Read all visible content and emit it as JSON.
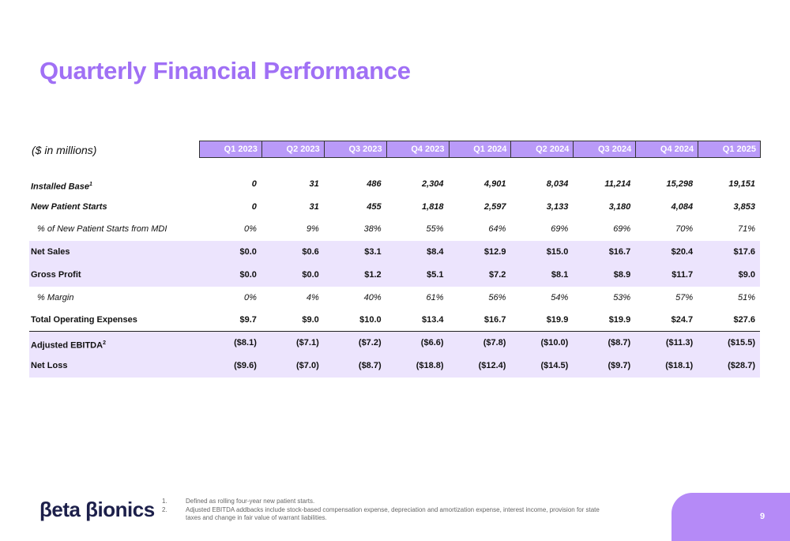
{
  "header": {
    "title": "Quarterly Financial Performance"
  },
  "table": {
    "units": "($ in millions)",
    "columns": [
      "Q1 2023",
      "Q2 2023",
      "Q3 2023",
      "Q4 2023",
      "Q1 2024",
      "Q2 2024",
      "Q3 2024",
      "Q4 2024",
      "Q1 2025"
    ],
    "rows": [
      {
        "label": "Installed Base",
        "sup": "1",
        "values": [
          "0",
          "31",
          "486",
          "2,304",
          "4,901",
          "8,034",
          "11,214",
          "15,298",
          "19,151"
        ]
      },
      {
        "label": "New Patient Starts",
        "values": [
          "0",
          "31",
          "455",
          "1,818",
          "2,597",
          "3,133",
          "3,180",
          "4,084",
          "3,853"
        ]
      },
      {
        "label": "% of New Patient Starts from MDI",
        "values": [
          "0%",
          "9%",
          "38%",
          "55%",
          "64%",
          "69%",
          "69%",
          "70%",
          "71%"
        ]
      },
      {
        "label": "Net Sales",
        "values": [
          "$0.0",
          "$0.6",
          "$3.1",
          "$8.4",
          "$12.9",
          "$15.0",
          "$16.7",
          "$20.4",
          "$17.6"
        ]
      },
      {
        "label": "Gross Profit",
        "values": [
          "$0.0",
          "$0.0",
          "$1.2",
          "$5.1",
          "$7.2",
          "$8.1",
          "$8.9",
          "$11.7",
          "$9.0"
        ]
      },
      {
        "label": "% Margin",
        "values": [
          "0%",
          "4%",
          "40%",
          "61%",
          "56%",
          "54%",
          "53%",
          "57%",
          "51%"
        ]
      },
      {
        "label": "Total Operating Expenses",
        "values": [
          "$9.7",
          "$9.0",
          "$10.0",
          "$13.4",
          "$16.7",
          "$19.9",
          "$19.9",
          "$24.7",
          "$27.6"
        ]
      },
      {
        "label": "Adjusted EBITDA",
        "sup": "2",
        "values": [
          "($8.1)",
          "($7.1)",
          "($7.2)",
          "($6.6)",
          "($7.8)",
          "($10.0)",
          "($8.7)",
          "($11.3)",
          "($15.5)"
        ]
      },
      {
        "label": "Net Loss",
        "values": [
          "($9.6)",
          "($7.0)",
          "($8.7)",
          "($18.8)",
          "($12.4)",
          "($14.5)",
          "($9.7)",
          "($18.1)",
          "($28.7)"
        ]
      }
    ]
  },
  "footnotes": [
    {
      "number": "1.",
      "text": "Defined as rolling four-year new patient starts."
    },
    {
      "number": "2.",
      "text": "Adjusted EBITDA addbacks include stock-based compensation expense, depreciation and amortization expense, interest income, provision for state taxes and change in fair value of warrant liabilities."
    }
  ],
  "footer": {
    "logo": "βeta βionics",
    "page_number": "9"
  }
}
